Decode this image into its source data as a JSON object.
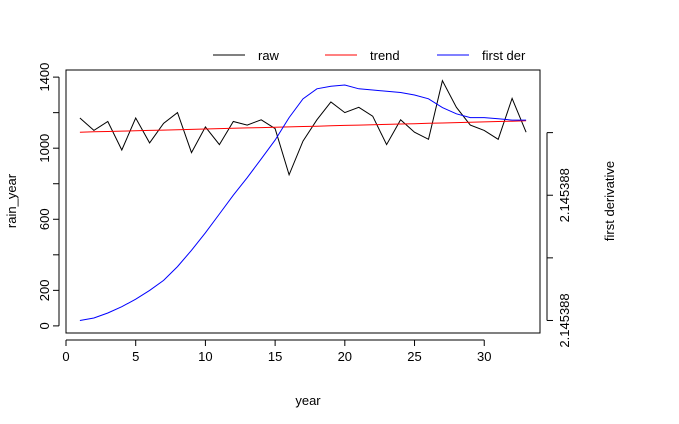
{
  "chart_data": {
    "type": "line",
    "xlabel": "year",
    "ylabel": "rain_year",
    "y2label": "first derivative",
    "xlim": [
      0,
      34
    ],
    "ylim": [
      -40,
      1440
    ],
    "x_ticks": [
      0,
      5,
      10,
      15,
      20,
      25,
      30
    ],
    "y_ticks": [
      0,
      200,
      600,
      1000,
      1400
    ],
    "y2_tick_labels": [
      "2.145388",
      "2.145388"
    ],
    "grid": false,
    "legend_position": "top",
    "legend": [
      {
        "label": "raw",
        "color": "#000000"
      },
      {
        "label": "trend",
        "color": "#ff0000"
      },
      {
        "label": "first der",
        "color": "#0000ff"
      }
    ],
    "x": [
      1,
      2,
      3,
      4,
      5,
      6,
      7,
      8,
      9,
      10,
      11,
      12,
      13,
      14,
      15,
      16,
      17,
      18,
      19,
      20,
      21,
      22,
      23,
      24,
      25,
      26,
      27,
      28,
      29,
      30,
      31,
      32,
      33
    ],
    "series": [
      {
        "name": "raw",
        "color": "#000000",
        "axis": "left",
        "values": [
          1170,
          1100,
          1150,
          990,
          1170,
          1030,
          1140,
          1200,
          975,
          1120,
          1020,
          1150,
          1130,
          1160,
          1110,
          850,
          1040,
          1160,
          1260,
          1200,
          1230,
          1180,
          1020,
          1160,
          1090,
          1050,
          1380,
          1230,
          1130,
          1100,
          1050,
          1280,
          1090
        ]
      },
      {
        "name": "trend",
        "color": "#ff0000",
        "axis": "left",
        "values": [
          1090,
          1092,
          1094,
          1096,
          1098,
          1100,
          1102,
          1104,
          1106,
          1108,
          1110,
          1112,
          1114,
          1116,
          1118,
          1120,
          1122,
          1124,
          1126,
          1128,
          1130,
          1132,
          1134,
          1136,
          1138,
          1140,
          1142,
          1144,
          1146,
          1148,
          1150,
          1152,
          1154
        ]
      },
      {
        "name": "first der",
        "color": "#0000ff",
        "axis": "right",
        "values": [
          0,
          20,
          60,
          110,
          170,
          240,
          320,
          430,
          560,
          700,
          850,
          1000,
          1140,
          1290,
          1440,
          1620,
          1770,
          1850,
          1870,
          1880,
          1850,
          1840,
          1830,
          1820,
          1800,
          1770,
          1700,
          1650,
          1620,
          1620,
          1610,
          1600,
          1600
        ]
      }
    ]
  }
}
